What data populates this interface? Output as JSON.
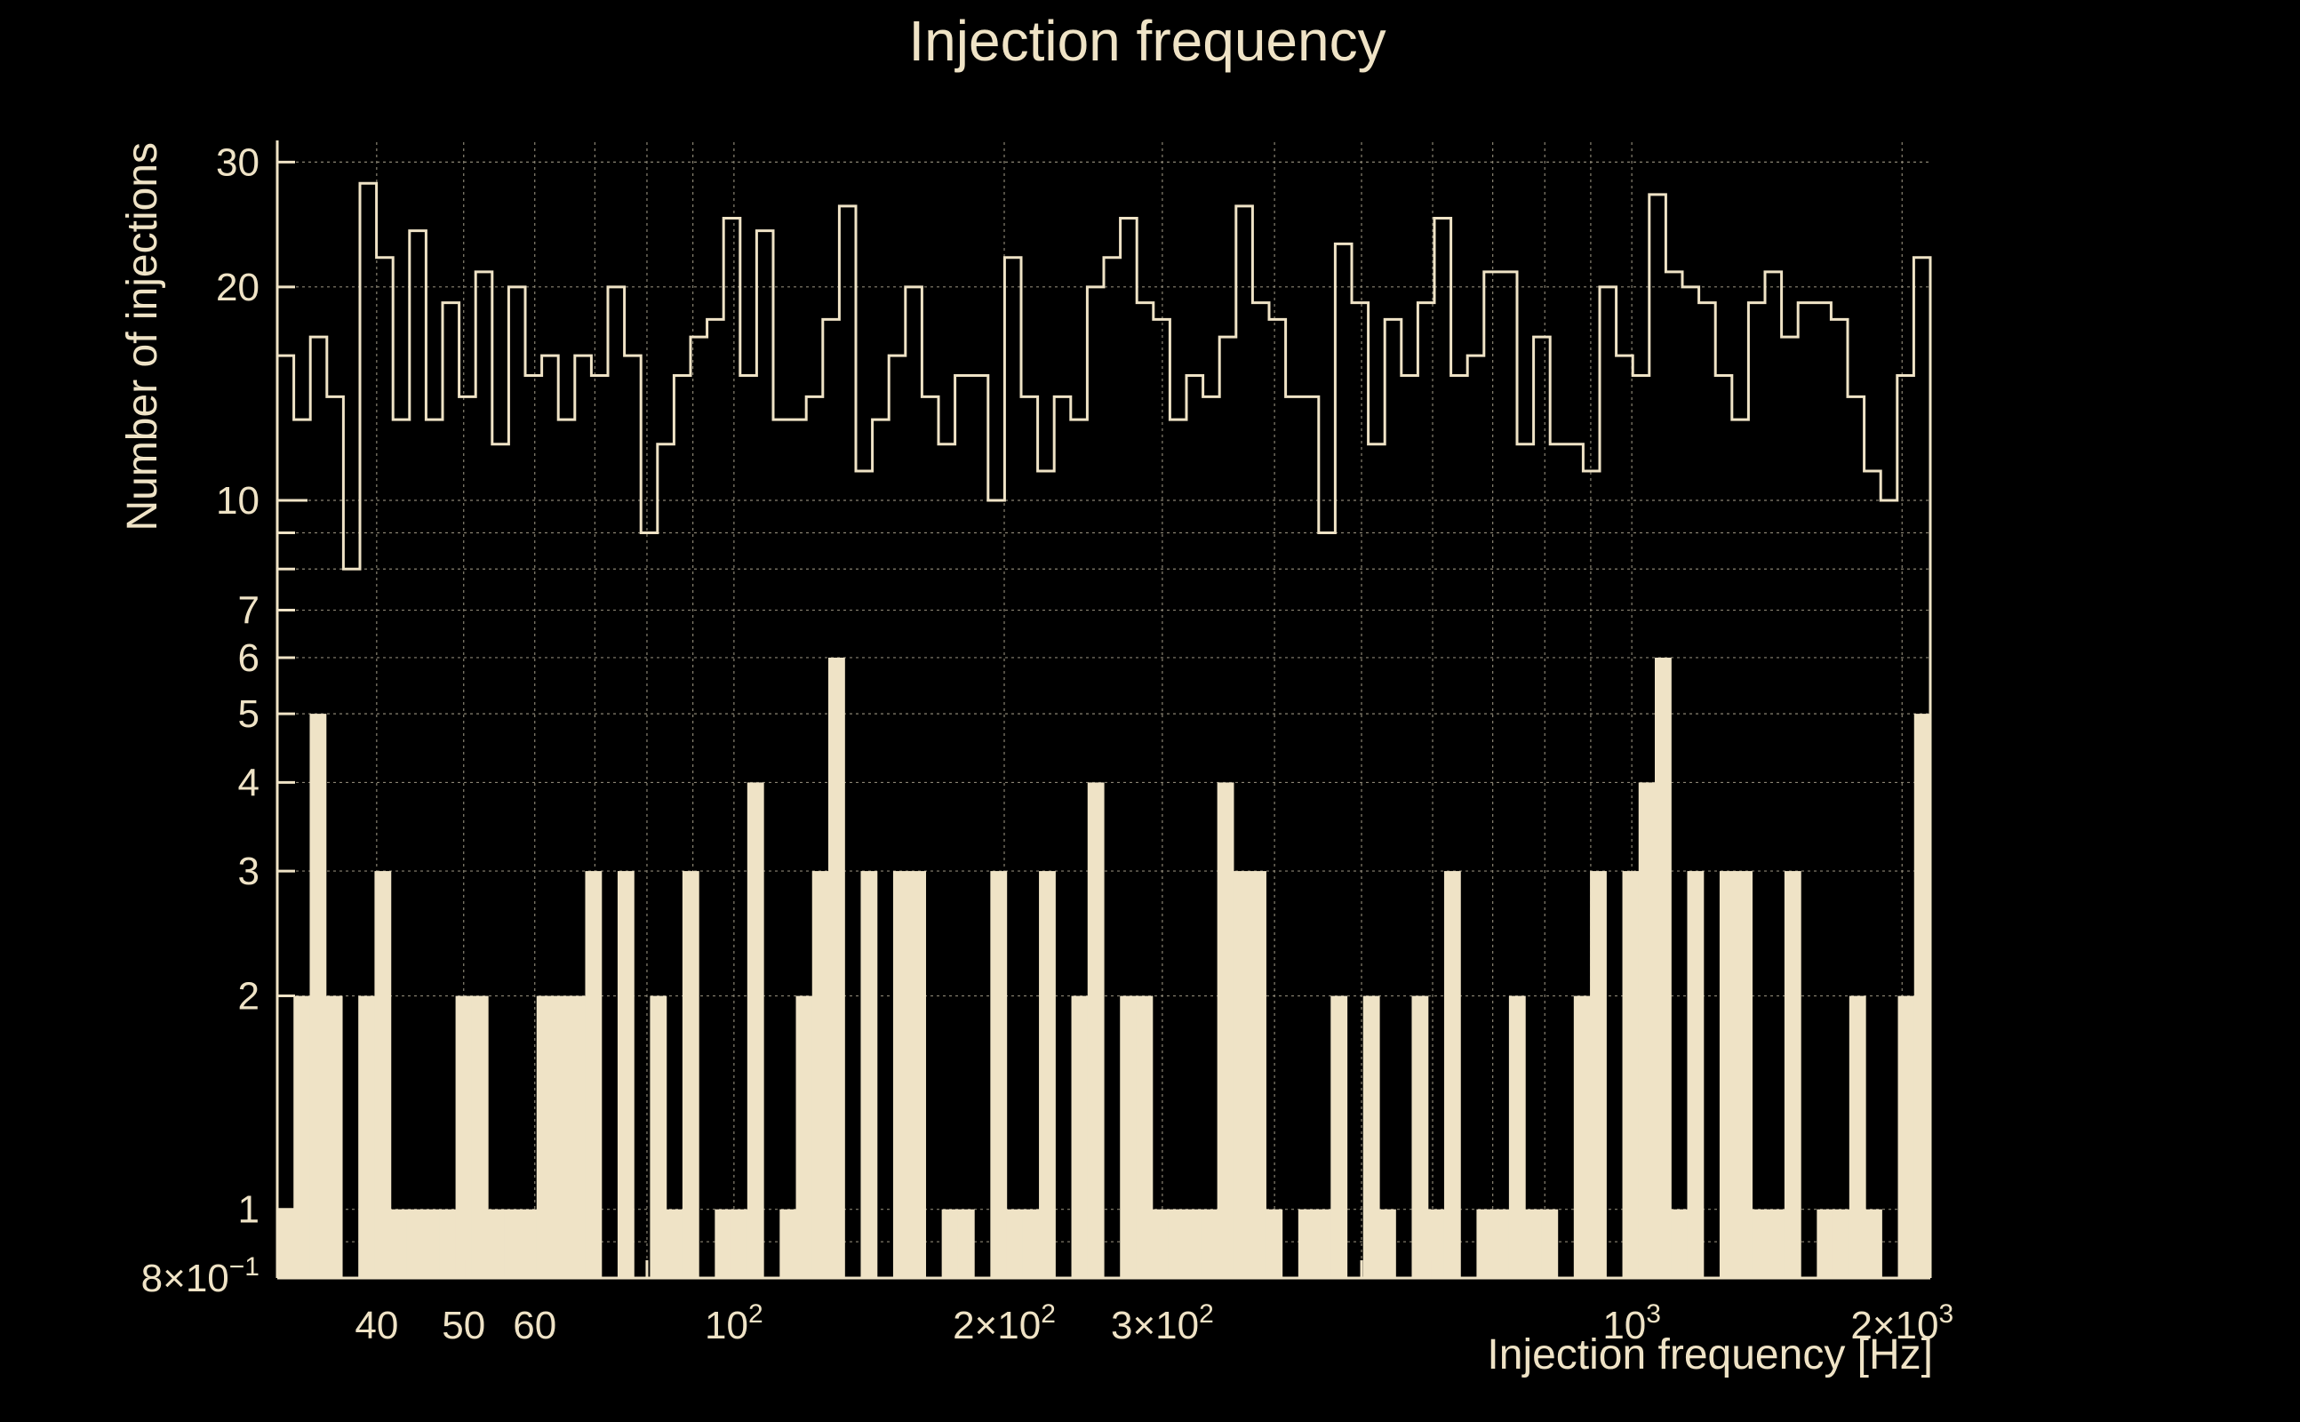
{
  "chart_data": {
    "type": "bar",
    "title": "Injection frequency",
    "xlabel": "Injection frequency [Hz]",
    "ylabel": "Number of injections",
    "x_scale": "log",
    "y_scale": "log",
    "xlim": [
      31,
      2150
    ],
    "ylim": [
      0.8,
      32
    ],
    "grid": true,
    "x_ticks": [
      {
        "value": 40,
        "base": "40",
        "exp": ""
      },
      {
        "value": 50,
        "base": "50",
        "exp": ""
      },
      {
        "value": 60,
        "base": "60",
        "exp": ""
      },
      {
        "value": 100,
        "base": "10",
        "exp": "2"
      },
      {
        "value": 200,
        "base": "2×10",
        "exp": "2"
      },
      {
        "value": 300,
        "base": "3×10",
        "exp": "2"
      },
      {
        "value": 1000,
        "base": "10",
        "exp": "3"
      },
      {
        "value": 2000,
        "base": "2×10",
        "exp": "3"
      }
    ],
    "y_ticks": [
      {
        "value": 0.8,
        "base": "8×10",
        "exp": "−1"
      },
      {
        "value": 1,
        "base": "1",
        "exp": ""
      },
      {
        "value": 2,
        "base": "2",
        "exp": ""
      },
      {
        "value": 3,
        "base": "3",
        "exp": ""
      },
      {
        "value": 4,
        "base": "4",
        "exp": ""
      },
      {
        "value": 5,
        "base": "5",
        "exp": ""
      },
      {
        "value": 6,
        "base": "6",
        "exp": ""
      },
      {
        "value": 7,
        "base": "7",
        "exp": ""
      },
      {
        "value": 10,
        "base": "10",
        "exp": ""
      },
      {
        "value": 20,
        "base": "20",
        "exp": ""
      },
      {
        "value": 30,
        "base": "30",
        "exp": ""
      }
    ],
    "series": [
      {
        "style": "filled-bars",
        "values": [
          1,
          2,
          5,
          2,
          0,
          2,
          3,
          1,
          1,
          1,
          1,
          2,
          2,
          1,
          1,
          1,
          2,
          2,
          2,
          3,
          0,
          3,
          0,
          2,
          1,
          3,
          0,
          1,
          1,
          4,
          0,
          1,
          2,
          3,
          6,
          0,
          3,
          0,
          3,
          3,
          0,
          1,
          1,
          0,
          3,
          1,
          1,
          3,
          0,
          2,
          4,
          0,
          2,
          2,
          1,
          1,
          1,
          1,
          4,
          3,
          3,
          1,
          0,
          1,
          1,
          2,
          0,
          2,
          1,
          0,
          2,
          1,
          3,
          0,
          1,
          1,
          2,
          1,
          1,
          0,
          2,
          3,
          0,
          3,
          4,
          6,
          1,
          3,
          0,
          3,
          3,
          1,
          1,
          3,
          0,
          1,
          1,
          2,
          1,
          0,
          2,
          5
        ]
      },
      {
        "style": "step-outline",
        "values": [
          16,
          13,
          17,
          14,
          8,
          28,
          22,
          13,
          24,
          13,
          19,
          14,
          21,
          12,
          20,
          15,
          16,
          13,
          16,
          15,
          20,
          16,
          9,
          12,
          15,
          17,
          18,
          25,
          15,
          24,
          13,
          13,
          14,
          18,
          26,
          11,
          13,
          16,
          20,
          14,
          12,
          15,
          15,
          10,
          22,
          14,
          11,
          14,
          13,
          20,
          22,
          25,
          19,
          18,
          13,
          15,
          14,
          17,
          26,
          19,
          18,
          14,
          14,
          9,
          23,
          19,
          12,
          18,
          15,
          19,
          25,
          15,
          16,
          21,
          21,
          12,
          17,
          12,
          12,
          11,
          20,
          16,
          15,
          27,
          21,
          20,
          19,
          15,
          13,
          19,
          21,
          17,
          19,
          19,
          18,
          14,
          11,
          10,
          15,
          22
        ]
      }
    ]
  }
}
